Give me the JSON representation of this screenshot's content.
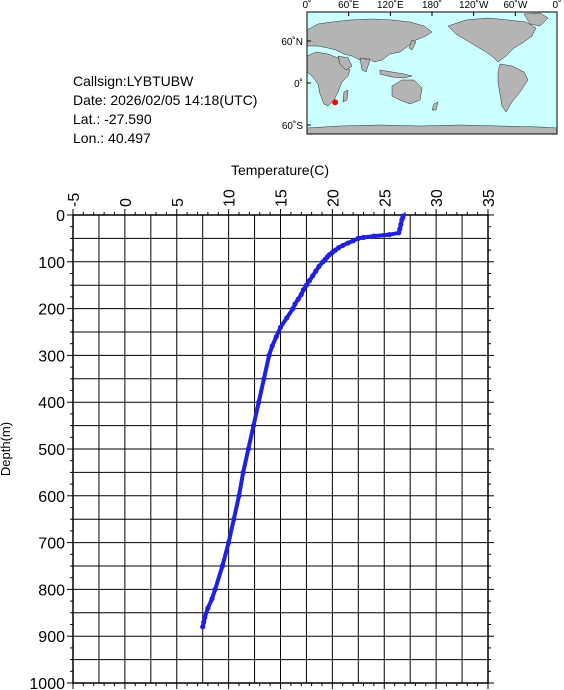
{
  "info": {
    "callsign": "Callsign:LYBTUBW",
    "date": "Date:  2026/02/05 14:18(UTC)",
    "lat": "Lat.:  -27.590",
    "lon": "Lon.:   40.497"
  },
  "map": {
    "top_ticks": [
      "0˚",
      "60˚E",
      "120˚E",
      "180˚",
      "120˚W",
      "60˚W",
      "0˚"
    ],
    "left_ticks": [
      "60˚N",
      "0˚",
      "60˚S"
    ],
    "ocean_color": "#ccffff",
    "land_color": "#b4b4b4",
    "marker_color": "#ff0000",
    "marker": {
      "lon": 40.497,
      "lat": -27.59
    }
  },
  "chart_data": {
    "type": "line",
    "xlabel": "Temperature(C)",
    "ylabel": "Depth(m)",
    "xlim": [
      -5,
      35
    ],
    "ylim": [
      1000,
      0
    ],
    "x_ticks": [
      -5,
      0,
      5,
      10,
      15,
      20,
      25,
      30,
      35
    ],
    "y_ticks": [
      0,
      100,
      200,
      300,
      400,
      500,
      600,
      700,
      800,
      900,
      1000
    ],
    "grid": true,
    "series_color": "#2020e0",
    "series": [
      {
        "depth": [
          2,
          5,
          10,
          20,
          30,
          38,
          42,
          45,
          48,
          50,
          55,
          60,
          65,
          70,
          75,
          80,
          85,
          90,
          95,
          100,
          110,
          120,
          130,
          140,
          150,
          160,
          170,
          180,
          190,
          200,
          220,
          240,
          260,
          280,
          300,
          350,
          400,
          450,
          500,
          550,
          600,
          650,
          700,
          750,
          800,
          820,
          840,
          860,
          870,
          880
        ],
        "temperature": [
          26.8,
          26.8,
          26.7,
          26.6,
          26.5,
          26.4,
          25.5,
          24.0,
          23.0,
          22.5,
          22.0,
          21.5,
          21.0,
          20.6,
          20.3,
          20.0,
          19.7,
          19.5,
          19.3,
          19.1,
          18.7,
          18.4,
          18.1,
          17.8,
          17.5,
          17.2,
          17.0,
          16.7,
          16.4,
          16.2,
          15.6,
          15.0,
          14.6,
          14.2,
          13.9,
          13.4,
          12.9,
          12.4,
          11.9,
          11.4,
          11.0,
          10.5,
          10.0,
          9.4,
          8.7,
          8.4,
          8.0,
          7.7,
          7.6,
          7.5
        ]
      }
    ]
  }
}
